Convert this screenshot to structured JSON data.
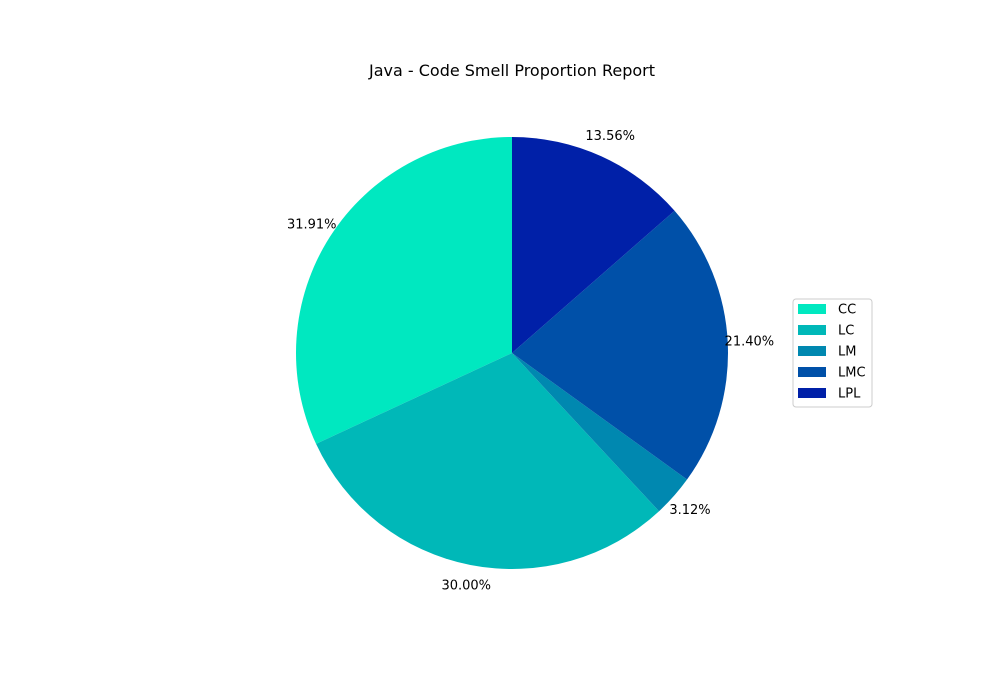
{
  "chart_data": {
    "type": "pie",
    "title": "Java - Code Smell Proportion Report",
    "categories": [
      "CC",
      "LC",
      "LM",
      "LMC",
      "LPL"
    ],
    "values": [
      31.91,
      30.0,
      3.12,
      21.4,
      13.56
    ],
    "labels": [
      "31.91%",
      "30.00%",
      "3.12%",
      "21.40%",
      "13.56%"
    ],
    "colors": [
      "#00e8c0",
      "#00b8b8",
      "#0088b0",
      "#0050a8",
      "#0020a8"
    ],
    "start_angle_deg": 90,
    "direction": "counterclockwise",
    "legend": {
      "position": "right"
    }
  }
}
